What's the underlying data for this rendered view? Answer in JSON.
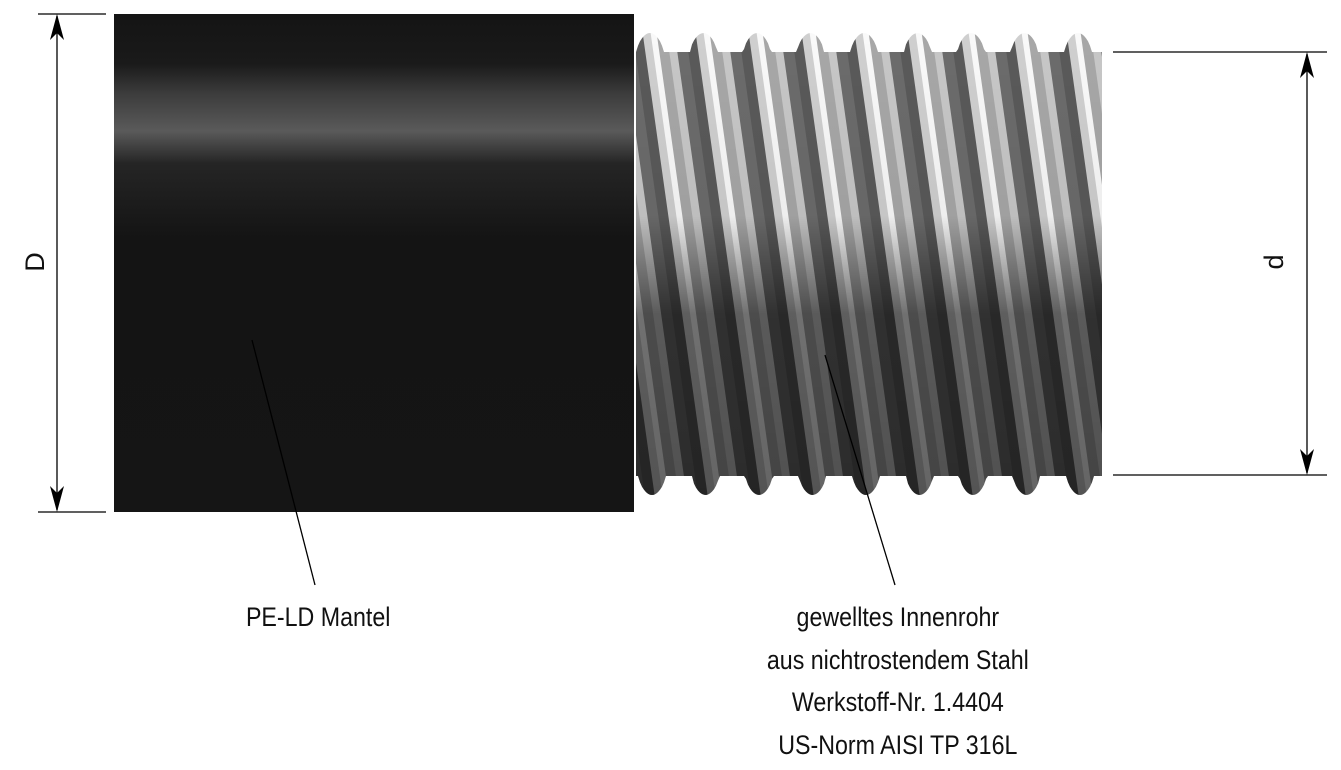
{
  "dimensions": {
    "outer_diameter_label": "D",
    "inner_diameter_label": "d"
  },
  "labels": {
    "jacket": "PE-LD Mantel",
    "inner_pipe": [
      "gewelltes Innenrohr",
      "aus nichtrostendem Stahl",
      "Werkstoff-Nr. 1.4404",
      "US-Norm AISI TP 316L"
    ]
  },
  "colors": {
    "jacket": "#151515",
    "steel_light": "#e6e6e6",
    "steel_dark": "#3a3a3a",
    "line": "#000000"
  }
}
